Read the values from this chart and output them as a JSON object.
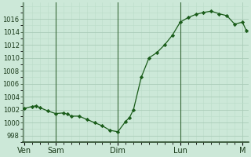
{
  "background_color": "#cce8d8",
  "grid_color_major": "#aaccb8",
  "grid_color_minor": "#bbddc8",
  "line_color": "#1a5c1a",
  "marker_color": "#1a5c1a",
  "ylim": [
    997,
    1018.5
  ],
  "yticks": [
    998,
    1000,
    1002,
    1004,
    1006,
    1008,
    1010,
    1012,
    1014,
    1016
  ],
  "day_labels": [
    "Ven",
    "Sam",
    "Dim",
    "Lun",
    "M"
  ],
  "day_positions": [
    0,
    8,
    24,
    40,
    56
  ],
  "x_values": [
    0,
    2,
    3,
    4,
    6,
    8,
    10,
    11,
    12,
    14,
    16,
    18,
    20,
    22,
    24,
    26,
    27,
    28,
    30,
    32,
    34,
    36,
    38,
    40,
    42,
    44,
    46,
    48,
    50,
    52,
    54,
    56,
    57
  ],
  "y_values": [
    1002.2,
    1002.5,
    1002.6,
    1002.3,
    1001.8,
    1001.4,
    1001.5,
    1001.3,
    1001.0,
    1001.0,
    1000.5,
    1000.0,
    999.5,
    998.8,
    998.6,
    1000.2,
    1000.8,
    1002.0,
    1007.0,
    1010.0,
    1010.8,
    1012.0,
    1013.5,
    1015.5,
    1016.2,
    1016.7,
    1017.0,
    1017.2,
    1016.8,
    1016.5,
    1015.2,
    1015.5,
    1014.2
  ],
  "vline_positions": [
    8,
    24,
    40
  ],
  "tick_fontsize": 6,
  "label_fontsize": 7
}
